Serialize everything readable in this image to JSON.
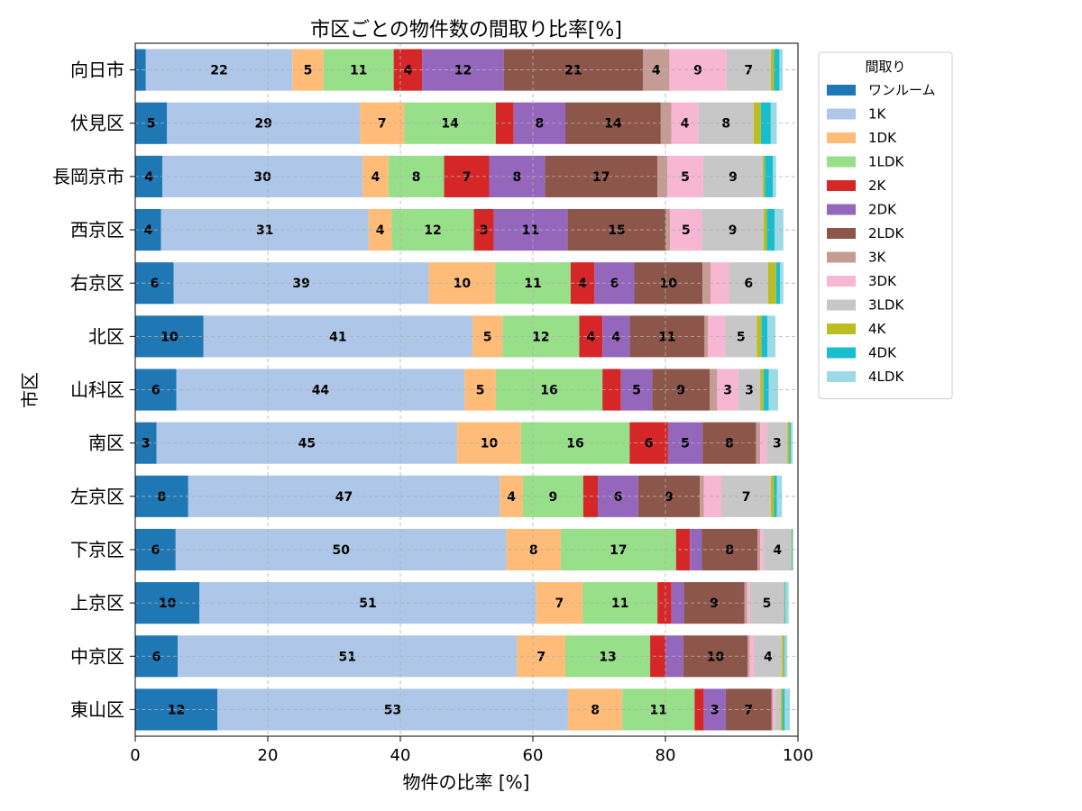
{
  "chart_data": {
    "type": "bar",
    "orientation": "horizontal",
    "stacked": true,
    "title": "市区ごとの物件数の間取り比率[%]",
    "xlabel": "物件の比率 [%]",
    "ylabel": "市区",
    "xlim": [
      0,
      100
    ],
    "xticks": [
      0,
      20,
      40,
      60,
      80,
      100
    ],
    "grid": true,
    "legend": {
      "title": "間取り",
      "placement": "outside-right"
    },
    "label_threshold": 3,
    "categories": [
      "向日市",
      "伏見区",
      "長岡京市",
      "西京区",
      "右京区",
      "北区",
      "山科区",
      "南区",
      "左京区",
      "下京区",
      "上京区",
      "中京区",
      "東山区"
    ],
    "series": [
      {
        "name": "ワンルーム",
        "color": "#1f77b4",
        "values": [
          1.6,
          4.8,
          4.1,
          3.9,
          5.8,
          10.3,
          6.2,
          3.2,
          8.0,
          6.1,
          9.7,
          6.4,
          12.4
        ]
      },
      {
        "name": "1K",
        "color": "#aec7e8",
        "values": [
          22.1,
          29.1,
          30.2,
          31.3,
          38.5,
          40.6,
          43.5,
          45.4,
          47.0,
          49.9,
          50.8,
          51.2,
          52.9
        ]
      },
      {
        "name": "1DK",
        "color": "#ffbb78",
        "values": [
          4.7,
          6.7,
          3.9,
          3.5,
          10.0,
          4.5,
          4.7,
          9.6,
          3.5,
          8.2,
          7.0,
          7.3,
          8.2
        ]
      },
      {
        "name": "1LDK",
        "color": "#98df8a",
        "values": [
          10.6,
          13.8,
          8.4,
          12.4,
          11.4,
          11.6,
          16.1,
          16.4,
          9.1,
          17.4,
          11.3,
          12.8,
          10.9
        ]
      },
      {
        "name": "2K",
        "color": "#d62728",
        "values": [
          4.3,
          2.7,
          6.8,
          3.0,
          3.6,
          3.5,
          2.8,
          5.8,
          2.2,
          2.1,
          2.1,
          2.3,
          1.4
        ]
      },
      {
        "name": "2DK",
        "color": "#9467bd",
        "values": [
          12.3,
          7.8,
          8.4,
          11.1,
          6.0,
          4.1,
          4.7,
          5.2,
          6.1,
          1.8,
          1.9,
          2.7,
          3.3
        ]
      },
      {
        "name": "2LDK",
        "color": "#8c564b",
        "values": [
          21.0,
          14.4,
          17.0,
          14.9,
          10.3,
          11.3,
          8.7,
          8.1,
          9.3,
          8.4,
          9.1,
          9.7,
          6.9
        ]
      },
      {
        "name": "3K",
        "color": "#c49c94",
        "values": [
          4.0,
          1.6,
          1.5,
          0.6,
          1.2,
          0.5,
          1.1,
          0.6,
          0.6,
          0.4,
          0.4,
          0.3,
          0.2
        ]
      },
      {
        "name": "3DK",
        "color": "#f7b6d2",
        "values": [
          8.6,
          4.1,
          5.4,
          4.8,
          2.8,
          2.6,
          3.2,
          1.0,
          2.7,
          0.5,
          0.4,
          0.7,
          0.3
        ]
      },
      {
        "name": "3LDK",
        "color": "#c7c7c7",
        "values": [
          6.7,
          8.3,
          9.0,
          9.3,
          5.9,
          4.8,
          3.3,
          3.1,
          7.4,
          4.2,
          5.2,
          4.2,
          0.9
        ]
      },
      {
        "name": "4K",
        "color": "#bcbd22",
        "values": [
          0.5,
          1.1,
          0.3,
          0.5,
          1.2,
          0.7,
          0.5,
          0.3,
          0.5,
          0.1,
          0.1,
          0.3,
          0.3
        ]
      },
      {
        "name": "4DK",
        "color": "#17becf",
        "values": [
          0.8,
          1.5,
          1.2,
          1.2,
          0.6,
          0.9,
          0.8,
          0.2,
          0.4,
          0.1,
          0.1,
          0.1,
          0.3
        ]
      },
      {
        "name": "4LDK",
        "color": "#9edae5",
        "values": [
          0.5,
          0.9,
          0.5,
          1.3,
          0.5,
          1.2,
          1.4,
          0.3,
          0.8,
          0.1,
          0.5,
          0.4,
          0.8
        ]
      }
    ]
  }
}
